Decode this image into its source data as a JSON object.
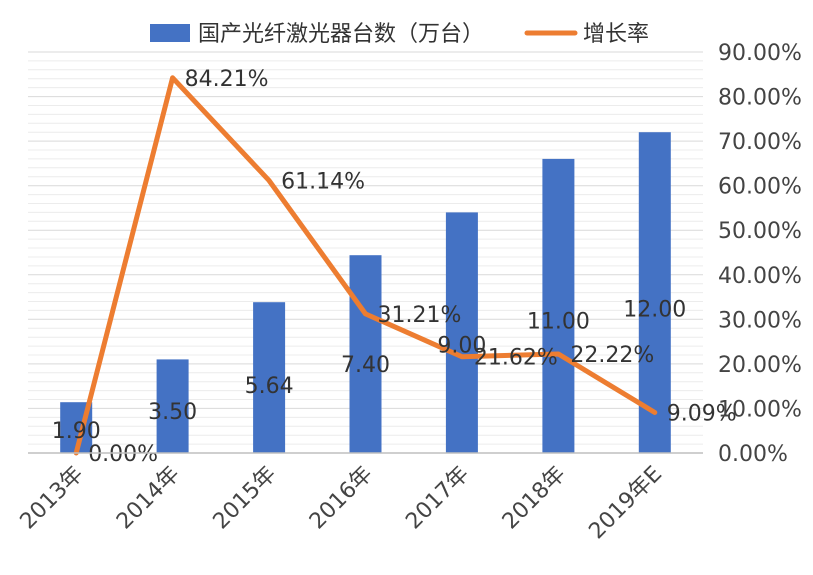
{
  "chart_data": {
    "type": "bar",
    "categories": [
      "2013年",
      "2014年",
      "2015年",
      "2016年",
      "2017年",
      "2018年",
      "2019年E"
    ],
    "series": [
      {
        "name": "国产光纤激光器台数（万台）",
        "type": "bar",
        "axis": "left",
        "values": [
          1.9,
          3.5,
          5.64,
          7.4,
          9.0,
          11.0,
          12.0
        ],
        "labels": [
          "1.90",
          "3.50",
          "5.64",
          "7.40",
          "9.00",
          "11.00",
          "12.00"
        ],
        "color": "#4472C4"
      },
      {
        "name": "增长率",
        "type": "line",
        "axis": "right",
        "values": [
          0.0,
          84.21,
          61.14,
          31.21,
          21.62,
          22.22,
          9.09
        ],
        "labels": [
          "0.00%",
          "84.21%",
          "61.14%",
          "31.21%",
          "21.62%",
          "22.22%",
          "9.09%"
        ],
        "color": "#ED7D31"
      }
    ],
    "y_left": {
      "min": 0,
      "max": 15
    },
    "y_right": {
      "min": 0,
      "max": 90,
      "ticks": [
        "0.00%",
        "10.00%",
        "20.00%",
        "30.00%",
        "40.00%",
        "50.00%",
        "60.00%",
        "70.00%",
        "80.00%",
        "90.00%"
      ]
    },
    "grid": true,
    "legend": "top"
  }
}
